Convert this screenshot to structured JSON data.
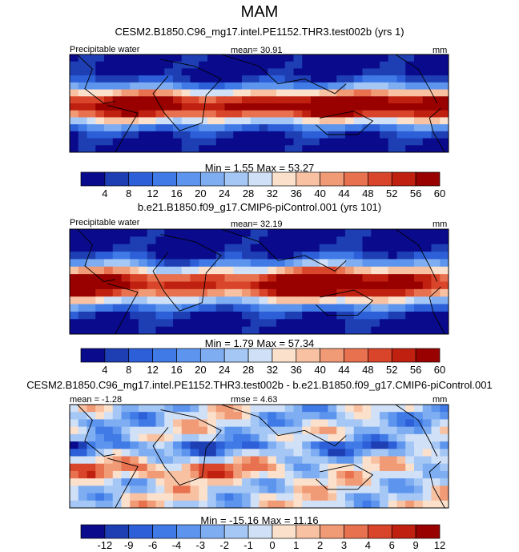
{
  "season": "MAM",
  "colors": {
    "abs_scale": [
      "#0a0a8c",
      "#1e3fb4",
      "#2c5fd8",
      "#3f7ae6",
      "#5d95ee",
      "#7fadf2",
      "#a5c7f5",
      "#cfe0f7",
      "#fbe0cc",
      "#f8c1a2",
      "#f19a76",
      "#e8714f",
      "#d9452a",
      "#c02010",
      "#990000"
    ],
    "diff_scale": [
      "#0a0a8c",
      "#1e3fb4",
      "#2c5fd8",
      "#3f7ae6",
      "#5d95ee",
      "#7fadf2",
      "#a5c7f5",
      "#cfe0f7",
      "#fbe0cc",
      "#f8c1a2",
      "#f19a76",
      "#e8714f",
      "#d9452a",
      "#c02010",
      "#990000"
    ]
  },
  "chart_data": [
    {
      "type": "heatmap",
      "title": "CESM2.B1850.C96_mg17.intel.PE1152.THR3.test002b (yrs 1)",
      "left_label": "Precipitable water",
      "center_label": "mean=  30.91",
      "right_label": "mm",
      "stats": "Min =   1.55 Max =  53.27",
      "colorbar_levels": [
        "4",
        "8",
        "12",
        "16",
        "20",
        "24",
        "28",
        "32",
        "36",
        "40",
        "44",
        "48",
        "52",
        "56",
        "60"
      ],
      "mean": 30.91,
      "min": 1.55,
      "max": 53.27
    },
    {
      "type": "heatmap",
      "title": "b.e21.B1850.f09_g17.CMIP6-piControl.001 (yrs 101)",
      "left_label": "Precipitable water",
      "center_label": "mean=  32.19",
      "right_label": "mm",
      "stats": "Min =   1.79 Max =  57.34",
      "colorbar_levels": [
        "4",
        "8",
        "12",
        "16",
        "20",
        "24",
        "28",
        "32",
        "36",
        "40",
        "44",
        "48",
        "52",
        "56",
        "60"
      ],
      "mean": 32.19,
      "min": 1.79,
      "max": 57.34
    },
    {
      "type": "heatmap",
      "title": "CESM2.B1850.C96_mg17.intel.PE1152.THR3.test002b - b.e21.B1850.f09_g17.CMIP6-piControl.001",
      "left_label": "mean = -1.28",
      "center_label": "rmse =   4.63",
      "right_label": "mm",
      "stats": "Min = -15.16 Max =  11.16",
      "colorbar_levels": [
        "-12",
        "-9",
        "-6",
        "-4",
        "-3",
        "-2",
        "-1",
        "0",
        "1",
        "2",
        "3",
        "4",
        "6",
        "9",
        "12"
      ],
      "mean": -1.28,
      "rmse": 4.63,
      "min": -15.16,
      "max": 11.16
    }
  ]
}
